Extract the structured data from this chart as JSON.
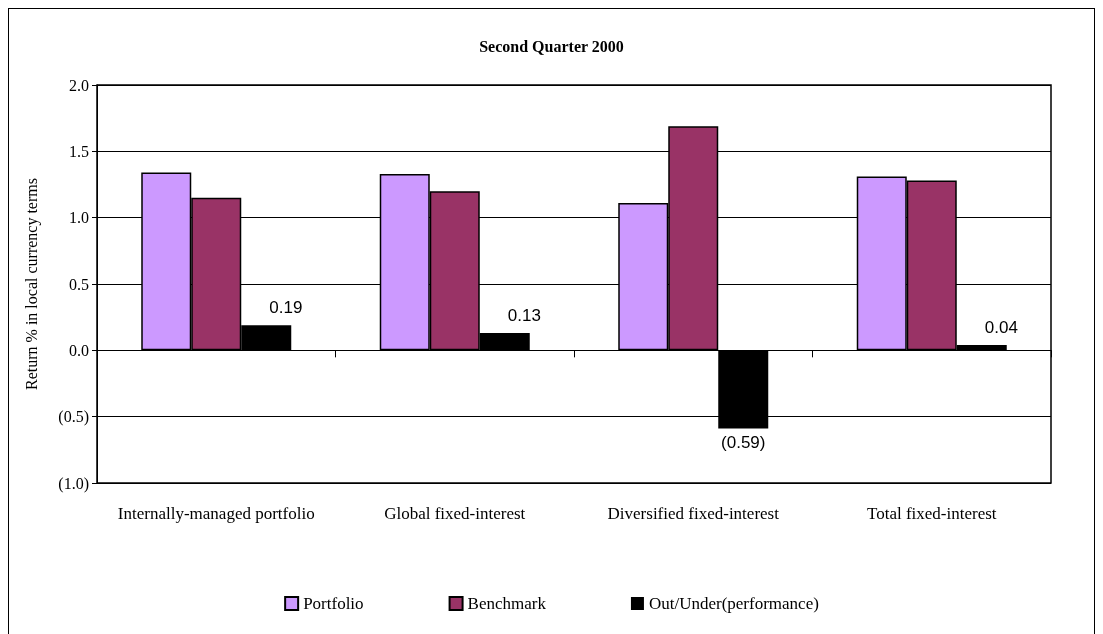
{
  "chart_data": {
    "type": "bar",
    "title": "Second Quarter 2000",
    "ylabel": "Return % in local currency terms",
    "categories": [
      "Internally-managed portfolio",
      "Global fixed-interest",
      "Diversified fixed-interest",
      "Total fixed-interest"
    ],
    "series": [
      {
        "name": "Portfolio",
        "color": "#cc99ff",
        "values": [
          1.34,
          1.33,
          1.11,
          1.31
        ]
      },
      {
        "name": "Benchmark",
        "color": "#993366",
        "values": [
          1.15,
          1.2,
          1.69,
          1.28
        ]
      },
      {
        "name": "Out/Under(performance)",
        "color": "#000000",
        "values": [
          0.19,
          0.13,
          -0.59,
          0.04
        ],
        "value_labels": [
          "0.19",
          "0.13",
          "(0.59)",
          "0.04"
        ]
      }
    ],
    "ylim": [
      -1.0,
      2.0
    ],
    "yticks": [
      {
        "value": -1.0,
        "label": "(1.0)"
      },
      {
        "value": -0.5,
        "label": "(0.5)"
      },
      {
        "value": 0,
        "label": "0.0"
      },
      {
        "value": 0.5,
        "label": "0.5"
      },
      {
        "value": 1.0,
        "label": "1.0"
      },
      {
        "value": 1.5,
        "label": "1.5"
      },
      {
        "value": 2.0,
        "label": "2.0"
      }
    ],
    "grid": "y",
    "legend": "bottom"
  }
}
